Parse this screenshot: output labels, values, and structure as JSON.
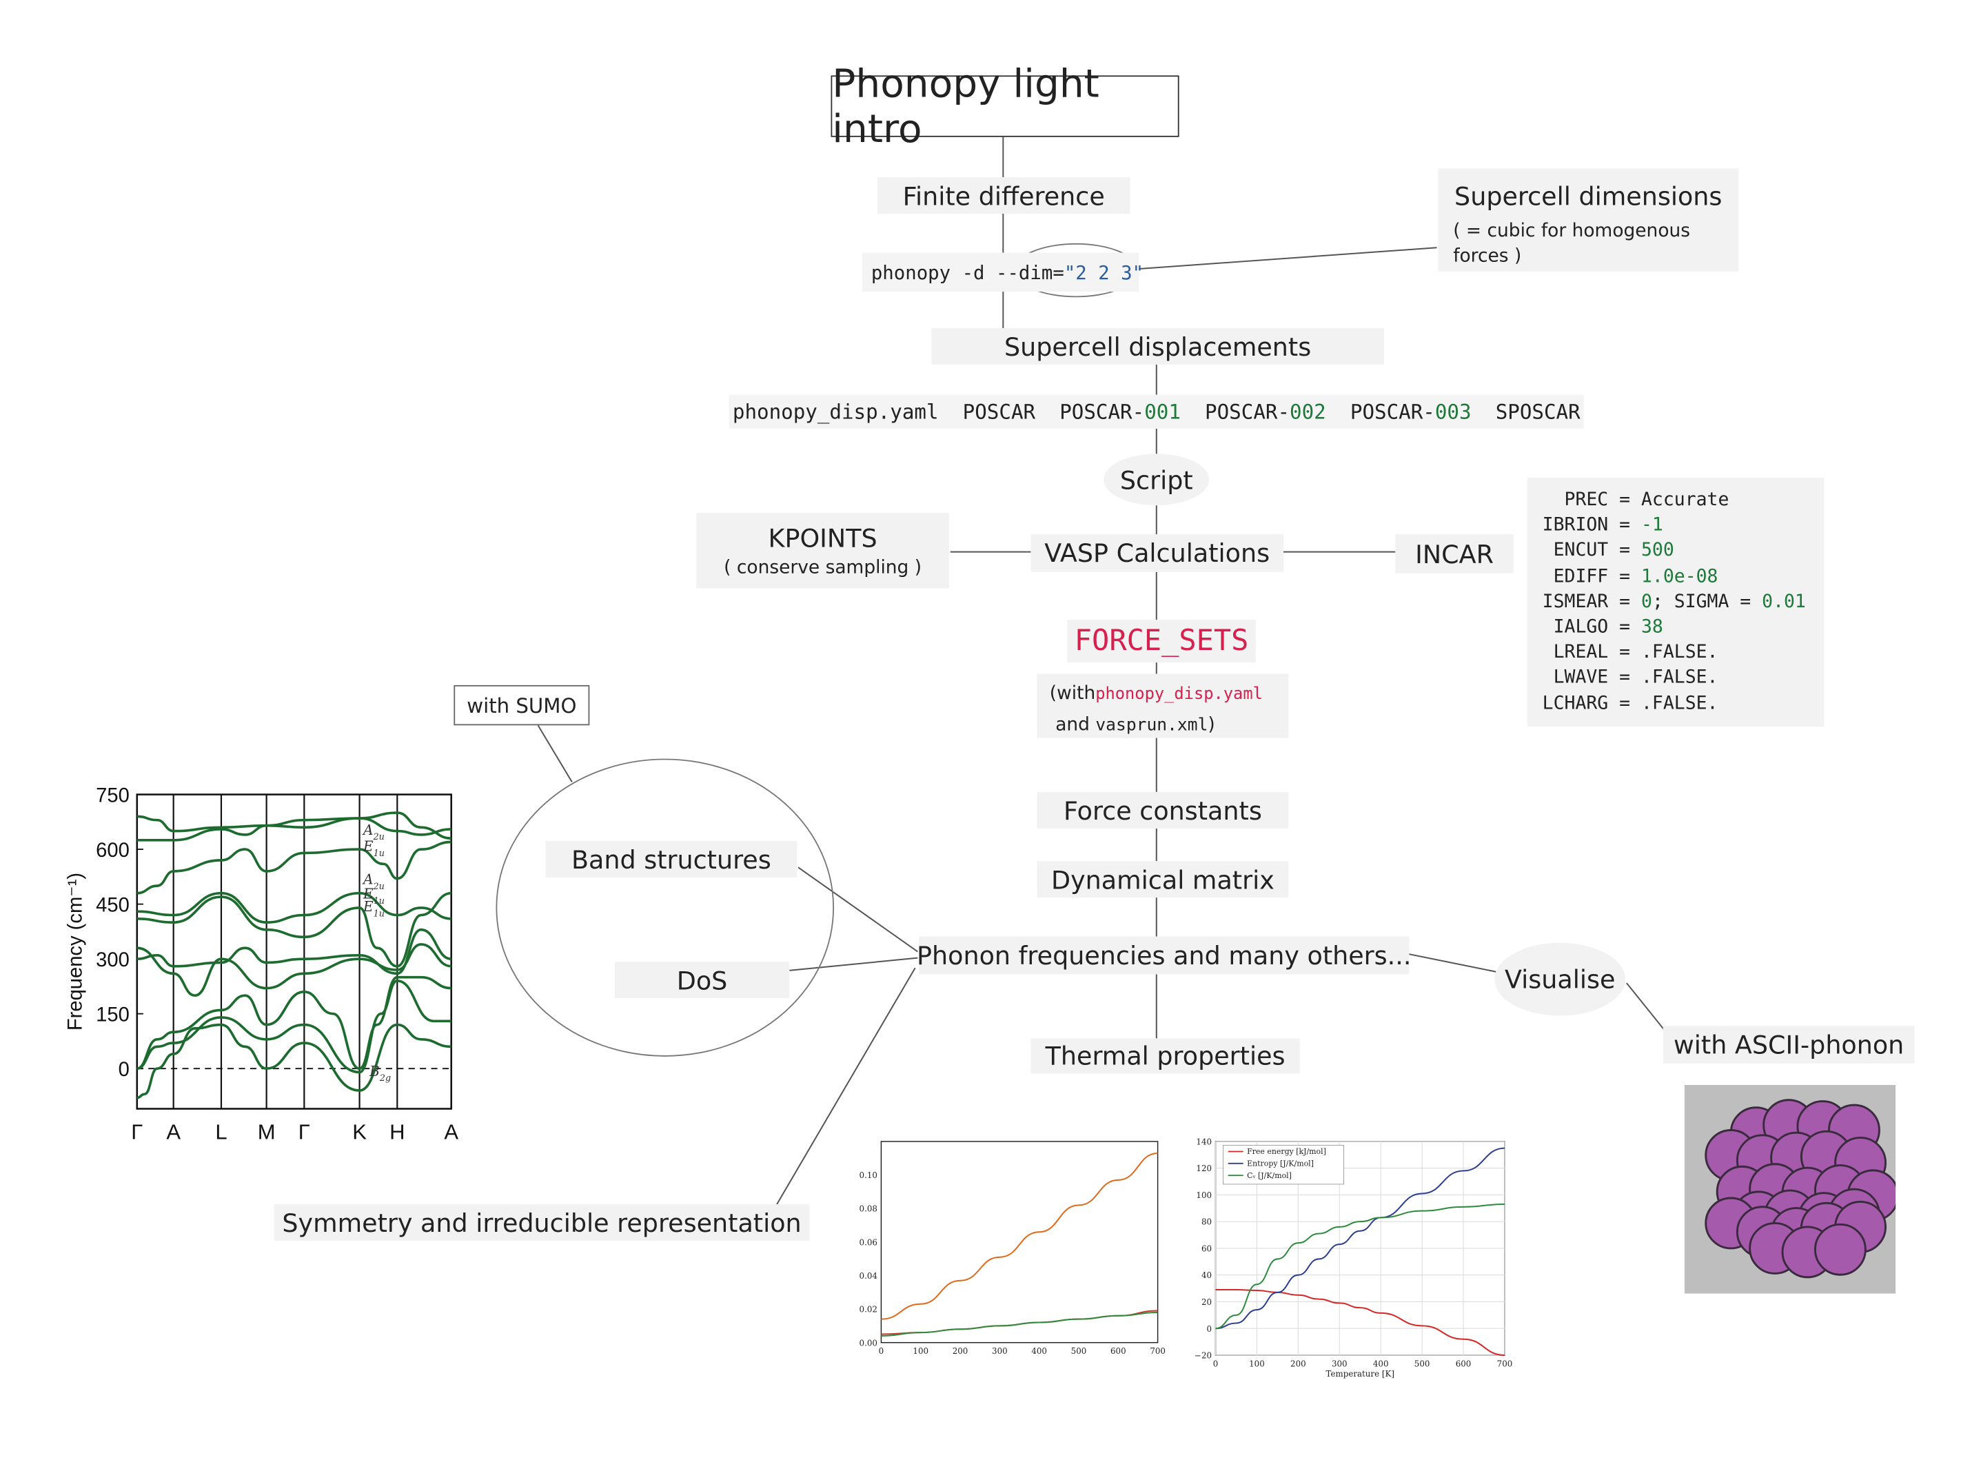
{
  "title": "Phonopy light intro",
  "nodes": {
    "finite_difference": "Finite difference",
    "supercell_displacements": "Supercell displacements",
    "script": "Script",
    "kpoints": "KPOINTS",
    "kpoints_note": "( conserve sampling )",
    "vasp": "VASP Calculations",
    "incar": "INCAR",
    "force_sets": "FORCE_SETS",
    "force_constants": "Force constants",
    "dynamical_matrix": "Dynamical matrix",
    "phonon_frequencies": "Phonon frequencies and many others...",
    "thermal": "Thermal properties",
    "band_structures": "Band structures",
    "dos": "DoS",
    "symmetry": "Symmetry and irreducible representation",
    "visualise": "Visualise",
    "ascii_phonon": "with ASCII-phonon",
    "with_sumo": "with SUMO"
  },
  "supercell_note": {
    "title": "Supercell dimensions",
    "text": "( = cubic for homogenous forces )"
  },
  "command": {
    "prefix": "phonopy -d --dim=",
    "value": "\"2 2 3\""
  },
  "files": {
    "yaml": "phonopy_disp.yaml",
    "poscar": "POSCAR",
    "poscar_prefix": "POSCAR-",
    "n1": "001",
    "n2": "002",
    "n3": "003",
    "sposcar": "SPOSCAR"
  },
  "force_sets_note": {
    "open": "(with",
    "yaml": "phonopy_disp.yaml",
    "and": "and",
    "vasprun": "vasprun.xml",
    "close": ")"
  },
  "incar_lines": [
    {
      "key": "  PREC",
      "op": " = ",
      "val": "Accurate",
      "num": false
    },
    {
      "key": "IBRION",
      "op": " = ",
      "val": "-1",
      "num": true
    },
    {
      "key": " ENCUT",
      "op": " = ",
      "val": "500",
      "num": true
    },
    {
      "key": " EDIFF",
      "op": " = ",
      "val": "1.0e-08",
      "num": true
    },
    {
      "key": "ISMEAR",
      "op": " = ",
      "val": "0",
      "num": true,
      "extra_key": "; SIGMA",
      "extra_val": "0.01"
    },
    {
      "key": " IALGO",
      "op": " = ",
      "val": "38",
      "num": true
    },
    {
      "key": " LREAL",
      "op": " = ",
      "val": ".FALSE.",
      "num": false
    },
    {
      "key": " LWAVE",
      "op": " = ",
      "val": ".FALSE.",
      "num": false
    },
    {
      "key": "LCHARG",
      "op": " = ",
      "val": ".FALSE.",
      "num": false
    }
  ],
  "band_chart": {
    "ylabel": "Frequency (cm⁻¹)",
    "yticks": [
      "750",
      "600",
      "450",
      "300",
      "150",
      "0"
    ],
    "xticks": [
      "Γ",
      "A",
      "L",
      "M",
      "Γ",
      "K",
      "H",
      "A"
    ],
    "irreps": [
      {
        "main": "A",
        "sub": "2u"
      },
      {
        "main": "E",
        "sub": "1u"
      },
      {
        "main": "A",
        "sub": "2u"
      },
      {
        "main": "E",
        "sub": "1u"
      },
      {
        "main": "E",
        "sub": "1u"
      },
      {
        "main": "B",
        "sub": "2g"
      }
    ],
    "line_color": "#1d6b2f"
  },
  "chart_data": [
    {
      "type": "line",
      "x": [
        0,
        100,
        200,
        300,
        400,
        500,
        600,
        700
      ],
      "xlim": [
        0,
        700
      ],
      "ylim": [
        0,
        0.12
      ],
      "xticks": [
        "0",
        "100",
        "200",
        "300",
        "400",
        "500",
        "600",
        "700"
      ],
      "yticks": [
        "0.00",
        "0.02",
        "0.04",
        "0.06",
        "0.08",
        "0.10"
      ],
      "series": [
        {
          "values": [
            0.014,
            0.023,
            0.037,
            0.051,
            0.066,
            0.082,
            0.097,
            0.113
          ],
          "color": "#e06a1a"
        },
        {
          "values": [
            0.005,
            0.006,
            0.008,
            0.01,
            0.012,
            0.014,
            0.016,
            0.019
          ],
          "color": "#c0392b"
        },
        {
          "values": [
            0.004,
            0.006,
            0.008,
            0.01,
            0.012,
            0.014,
            0.016,
            0.018
          ],
          "color": "#2f8a3e"
        }
      ]
    },
    {
      "type": "line",
      "x": [
        0,
        50,
        100,
        150,
        200,
        250,
        300,
        350,
        400,
        500,
        600,
        700
      ],
      "xlim": [
        0,
        700
      ],
      "ylim": [
        -20,
        140
      ],
      "xlabel": "Temperature [K]",
      "xticks": [
        "0",
        "100",
        "200",
        "300",
        "400",
        "500",
        "600",
        "700"
      ],
      "yticks": [
        "140",
        "120",
        "100",
        "80",
        "60",
        "40",
        "20",
        "0",
        "−20"
      ],
      "series": [
        {
          "name": "Free energy [kJ/mol]",
          "color": "#d62728",
          "values": [
            29,
            29,
            28.5,
            27,
            25,
            22,
            19,
            15.5,
            11.5,
            2,
            -8,
            -20
          ]
        },
        {
          "name": "Entropy [J/K/mol]",
          "color": "#2c3e8f",
          "values": [
            0,
            4,
            14,
            27,
            40,
            52,
            63,
            73,
            83,
            101,
            118,
            135
          ]
        },
        {
          "name": "Cᵥ [J/K/mol]",
          "color": "#2f8a3e",
          "values": [
            0,
            10,
            33,
            52,
            64,
            71,
            76,
            80,
            83,
            88,
            91,
            93
          ]
        }
      ]
    }
  ],
  "atom_color": "#a65aab",
  "atom_bg": "#bebebe"
}
